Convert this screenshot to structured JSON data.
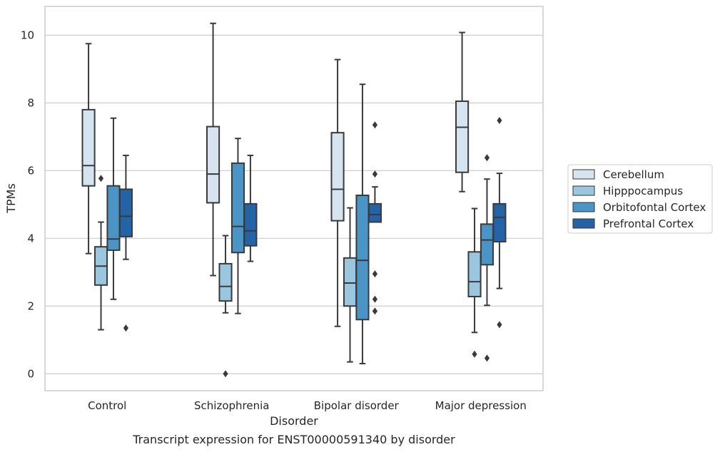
{
  "chart_data": {
    "type": "box",
    "caption": "Transcript expression for ENST00000591340 by disorder",
    "xlabel": "Disorder",
    "ylabel": "TPMs",
    "ylim": [
      -0.5,
      10.85
    ],
    "yticks": [
      0,
      2,
      4,
      6,
      8,
      10
    ],
    "grid": "horizontal",
    "legend_position": "right",
    "categories": [
      "Control",
      "Schizophrenia",
      "Bipolar disorder",
      "Major depression"
    ],
    "series": [
      {
        "name": "Cerebellum",
        "color": "#d6e4f2",
        "boxes": [
          {
            "whisker_low": 3.55,
            "q1": 5.55,
            "median": 6.15,
            "q3": 7.8,
            "whisker_high": 9.75,
            "outliers": []
          },
          {
            "whisker_low": 2.9,
            "q1": 5.05,
            "median": 5.9,
            "q3": 7.3,
            "whisker_high": 10.35,
            "outliers": []
          },
          {
            "whisker_low": 1.4,
            "q1": 4.52,
            "median": 5.45,
            "q3": 7.12,
            "whisker_high": 9.28,
            "outliers": []
          },
          {
            "whisker_low": 5.38,
            "q1": 5.95,
            "median": 7.28,
            "q3": 8.05,
            "whisker_high": 10.08,
            "outliers": []
          }
        ]
      },
      {
        "name": "Hipppocampus",
        "color": "#9ac6e0",
        "boxes": [
          {
            "whisker_low": 1.3,
            "q1": 2.62,
            "median": 3.18,
            "q3": 3.75,
            "whisker_high": 4.48,
            "outliers": [
              5.77
            ]
          },
          {
            "whisker_low": 1.8,
            "q1": 2.15,
            "median": 2.58,
            "q3": 3.25,
            "whisker_high": 4.08,
            "outliers": [
              0.0
            ]
          },
          {
            "whisker_low": 0.35,
            "q1": 2.0,
            "median": 2.68,
            "q3": 3.42,
            "whisker_high": 4.9,
            "outliers": []
          },
          {
            "whisker_low": 1.22,
            "q1": 2.28,
            "median": 2.72,
            "q3": 3.6,
            "whisker_high": 4.88,
            "outliers": [
              0.58
            ]
          }
        ]
      },
      {
        "name": "Orbitofontal Cortex",
        "color": "#4b95c6",
        "boxes": [
          {
            "whisker_low": 2.2,
            "q1": 3.65,
            "median": 3.98,
            "q3": 5.55,
            "whisker_high": 7.55,
            "outliers": []
          },
          {
            "whisker_low": 1.78,
            "q1": 3.58,
            "median": 4.35,
            "q3": 6.22,
            "whisker_high": 6.95,
            "outliers": []
          },
          {
            "whisker_low": 0.3,
            "q1": 1.6,
            "median": 3.35,
            "q3": 5.27,
            "whisker_high": 8.55,
            "outliers": []
          },
          {
            "whisker_low": 2.02,
            "q1": 3.22,
            "median": 3.95,
            "q3": 4.42,
            "whisker_high": 5.75,
            "outliers": [
              6.38,
              0.46
            ]
          }
        ]
      },
      {
        "name": "Prefrontal Cortex",
        "color": "#2463a6",
        "boxes": [
          {
            "whisker_low": 3.38,
            "q1": 4.05,
            "median": 4.65,
            "q3": 5.45,
            "whisker_high": 6.45,
            "outliers": [
              1.35
            ]
          },
          {
            "whisker_low": 3.32,
            "q1": 3.78,
            "median": 4.22,
            "q3": 5.02,
            "whisker_high": 6.45,
            "outliers": []
          },
          {
            "whisker_low": 4.48,
            "q1": 4.48,
            "median": 4.7,
            "q3": 5.02,
            "whisker_high": 5.52,
            "outliers": [
              7.35,
              5.9,
              2.95,
              2.2,
              1.85
            ]
          },
          {
            "whisker_low": 2.52,
            "q1": 3.9,
            "median": 4.62,
            "q3": 5.02,
            "whisker_high": 5.92,
            "outliers": [
              7.48,
              1.45
            ]
          }
        ]
      }
    ]
  }
}
